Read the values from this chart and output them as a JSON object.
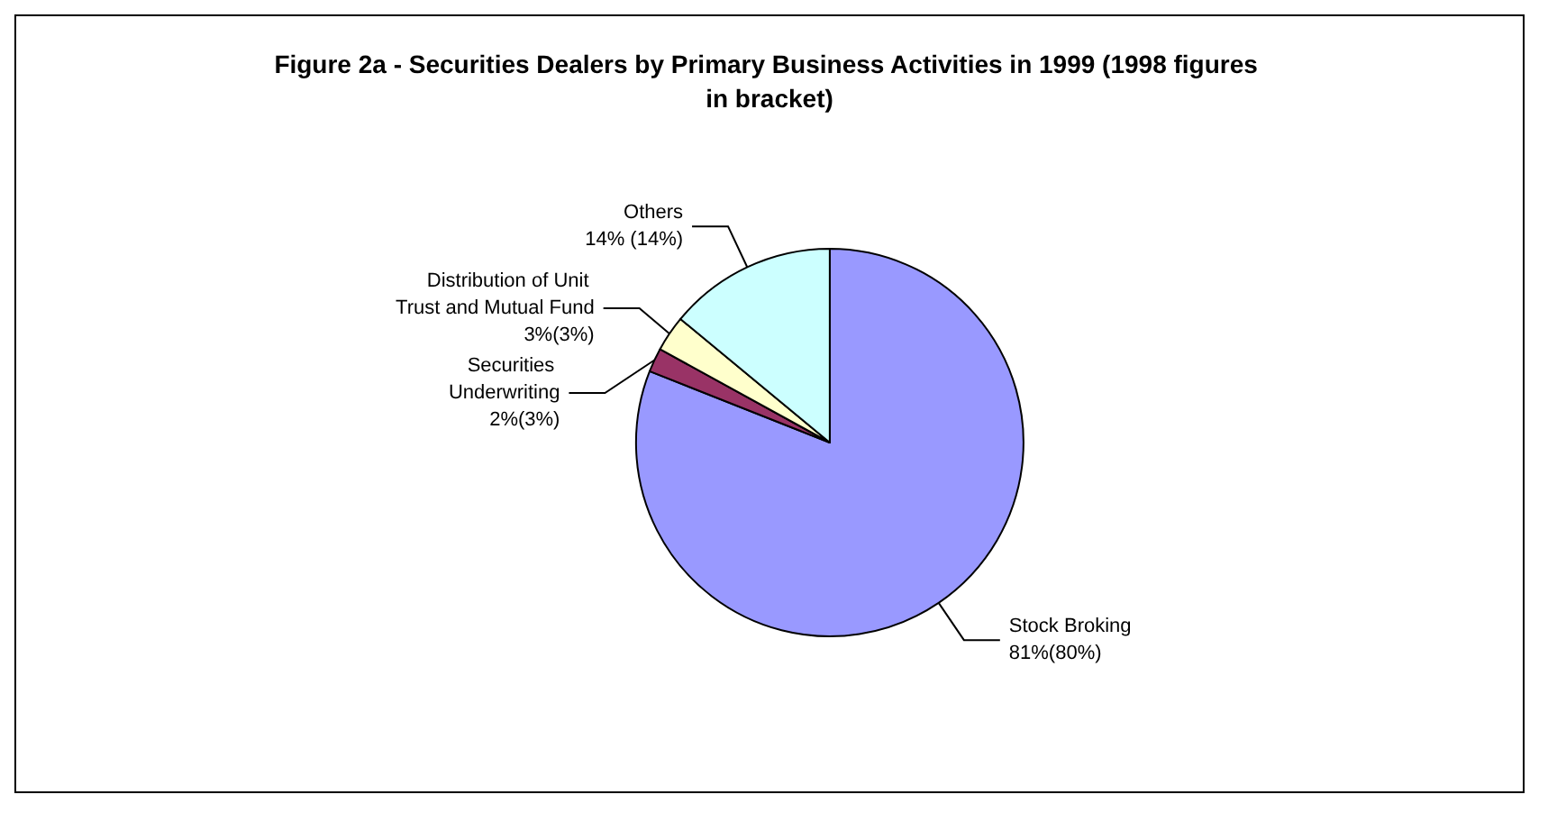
{
  "chart_data": {
    "type": "pie",
    "title": "Figure 2a - Securities Dealers by Primary Business Activities in 1999 (1998 figures in bracket)",
    "categories": [
      "Stock Broking",
      "Securities Underwriting",
      "Distribution of Unit Trust and Mutual Fund",
      "Others"
    ],
    "values": [
      81,
      2,
      3,
      14
    ],
    "colors": [
      "#9999ff",
      "#993366",
      "#ffffcc",
      "#ccffff"
    ],
    "value_labels": [
      "81%(80%)",
      "2%(3%)",
      "3%(3%)",
      "14% (14%)"
    ],
    "legend": false
  }
}
